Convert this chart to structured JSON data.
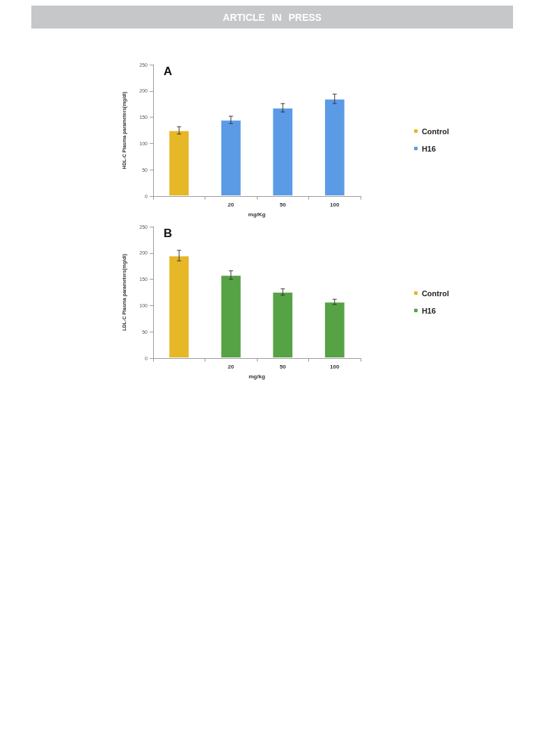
{
  "chart_data": [
    {
      "type": "bar",
      "title": "A",
      "annotations": [
        "ARTICLE IN PRESS"
      ],
      "xlabel": "mg/Kg",
      "ylabel": "HDL-C Plasma parameters(mg/dl)",
      "categories": [
        null,
        "20",
        "50",
        "100"
      ],
      "series": [
        {
          "name": "Control",
          "color": "#e6b727",
          "values": [
            125,
            null,
            null,
            null
          ],
          "errors": [
            7,
            null,
            null,
            null
          ]
        },
        {
          "name": "H16",
          "color": "#5b9be6",
          "values": [
            null,
            145,
            168,
            185
          ],
          "errors": [
            null,
            7,
            8,
            9
          ]
        }
      ],
      "ylim": [
        0,
        250
      ],
      "yticks": [
        0,
        50,
        100,
        150,
        200,
        250
      ],
      "grid": false,
      "legend": "right"
    },
    {
      "type": "bar",
      "title": "B",
      "xlabel": "mg/kg",
      "ylabel": "LDL-C Plasma parameters(mg/dl)",
      "categories": [
        null,
        "20",
        "50",
        "100"
      ],
      "series": [
        {
          "name": "Control",
          "color": "#e6b727",
          "values": [
            195,
            null,
            null,
            null
          ],
          "errors": [
            10,
            null,
            null,
            null
          ]
        },
        {
          "name": "H16",
          "color": "#56a346",
          "values": [
            null,
            158,
            126,
            107
          ],
          "errors": [
            null,
            8,
            6,
            5
          ]
        }
      ],
      "ylim": [
        0,
        250
      ],
      "yticks": [
        0,
        50,
        100,
        150,
        200,
        250
      ],
      "grid": false,
      "legend": "right"
    }
  ]
}
